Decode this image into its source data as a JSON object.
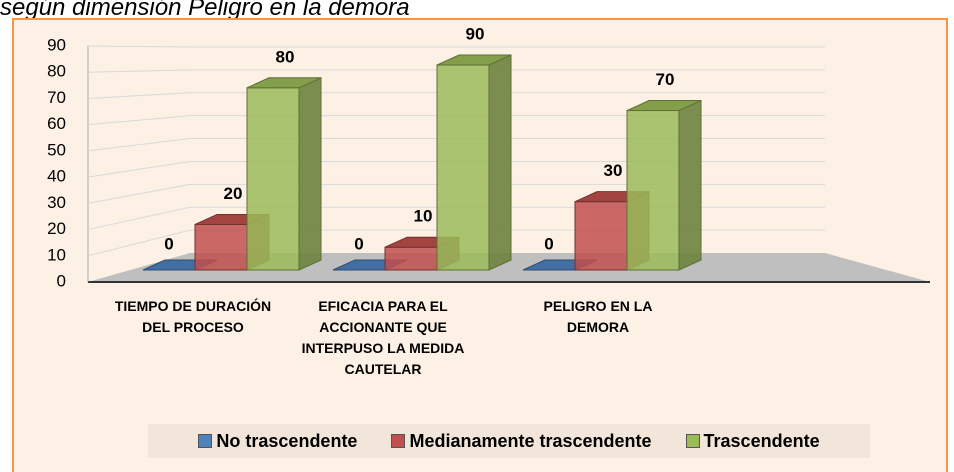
{
  "chart_data": {
    "type": "bar3d",
    "title": "según dimensión Peligro en la demora",
    "categories": [
      "TIEMPO DE DURACIÓN DEL PROCESO",
      "EFICACIA PARA EL ACCIONANTE QUE INTERPUSO LA MEDIDA CAUTELAR",
      "PELIGRO EN LA DEMORA"
    ],
    "series": [
      {
        "name": "No trascendente",
        "color": "#4f81bd",
        "values": [
          0,
          0,
          0
        ]
      },
      {
        "name": "Medianamente trascendente",
        "color": "#c0504d",
        "values": [
          20,
          10,
          30
        ]
      },
      {
        "name": "Trascendente",
        "color": "#9bbb59",
        "values": [
          80,
          90,
          70
        ]
      }
    ],
    "ylim": [
      0,
      90
    ],
    "yticks": [
      0,
      10,
      20,
      30,
      40,
      50,
      60,
      70,
      80,
      90
    ],
    "grid": true,
    "legend": "bottom"
  }
}
